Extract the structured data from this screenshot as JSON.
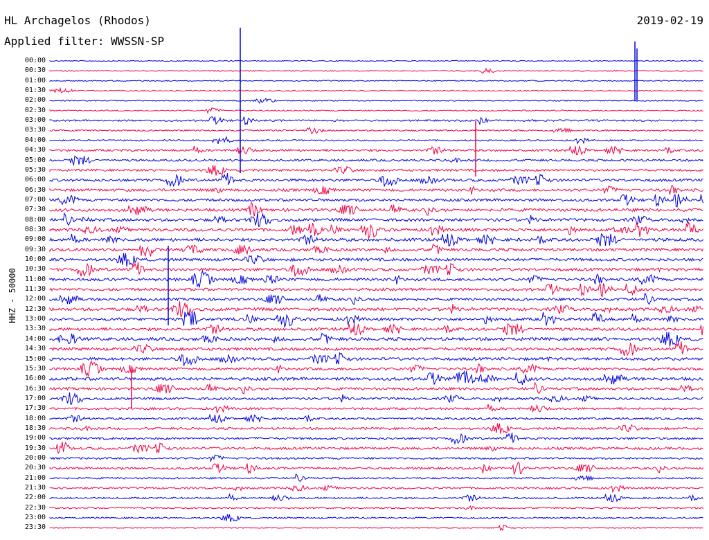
{
  "header": {
    "station": "HL Archagelos (Rhodos)",
    "filter": "Applied filter: WWSSN-SP",
    "date": "2019-02-19"
  },
  "axis": {
    "channel_label": "HHZ - 50000"
  },
  "colors": {
    "trace_a": "#0000dd",
    "trace_b": "#ee0044"
  },
  "traces": [
    {
      "time": "00:00",
      "color": "blue",
      "activity": 0.05
    },
    {
      "time": "00:30",
      "color": "red",
      "activity": 0.1
    },
    {
      "time": "01:00",
      "color": "blue",
      "activity": 0.1
    },
    {
      "time": "01:30",
      "color": "red",
      "activity": 0.1
    },
    {
      "time": "02:00",
      "color": "blue",
      "activity": 0.1
    },
    {
      "time": "02:30",
      "color": "red",
      "activity": 0.15
    },
    {
      "time": "03:00",
      "color": "blue",
      "activity": 0.4
    },
    {
      "time": "03:30",
      "color": "red",
      "activity": 0.3
    },
    {
      "time": "04:00",
      "color": "blue",
      "activity": 0.3
    },
    {
      "time": "04:30",
      "color": "red",
      "activity": 0.6
    },
    {
      "time": "05:00",
      "color": "blue",
      "activity": 0.6
    },
    {
      "time": "05:30",
      "color": "red",
      "activity": 0.6
    },
    {
      "time": "06:00",
      "color": "blue",
      "activity": 0.8
    },
    {
      "time": "06:30",
      "color": "red",
      "activity": 0.8
    },
    {
      "time": "07:00",
      "color": "blue",
      "activity": 0.8
    },
    {
      "time": "07:30",
      "color": "red",
      "activity": 0.9
    },
    {
      "time": "08:00",
      "color": "blue",
      "activity": 0.9
    },
    {
      "time": "08:30",
      "color": "red",
      "activity": 1.0
    },
    {
      "time": "09:00",
      "color": "blue",
      "activity": 1.0
    },
    {
      "time": "09:30",
      "color": "red",
      "activity": 0.9
    },
    {
      "time": "10:00",
      "color": "blue",
      "activity": 0.9
    },
    {
      "time": "10:30",
      "color": "red",
      "activity": 0.9
    },
    {
      "time": "11:00",
      "color": "blue",
      "activity": 0.9
    },
    {
      "time": "11:30",
      "color": "red",
      "activity": 0.8
    },
    {
      "time": "12:00",
      "color": "blue",
      "activity": 0.8
    },
    {
      "time": "12:30",
      "color": "red",
      "activity": 1.0
    },
    {
      "time": "13:00",
      "color": "blue",
      "activity": 0.9
    },
    {
      "time": "13:30",
      "color": "red",
      "activity": 0.9
    },
    {
      "time": "14:00",
      "color": "blue",
      "activity": 1.0
    },
    {
      "time": "14:30",
      "color": "red",
      "activity": 0.9
    },
    {
      "time": "15:00",
      "color": "blue",
      "activity": 0.9
    },
    {
      "time": "15:30",
      "color": "red",
      "activity": 0.8
    },
    {
      "time": "16:00",
      "color": "blue",
      "activity": 1.0
    },
    {
      "time": "16:30",
      "color": "red",
      "activity": 0.8
    },
    {
      "time": "17:00",
      "color": "blue",
      "activity": 0.7
    },
    {
      "time": "17:30",
      "color": "red",
      "activity": 0.6
    },
    {
      "time": "18:00",
      "color": "blue",
      "activity": 0.5
    },
    {
      "time": "18:30",
      "color": "red",
      "activity": 0.6
    },
    {
      "time": "19:00",
      "color": "blue",
      "activity": 0.6
    },
    {
      "time": "19:30",
      "color": "red",
      "activity": 0.7
    },
    {
      "time": "20:00",
      "color": "blue",
      "activity": 0.5
    },
    {
      "time": "20:30",
      "color": "red",
      "activity": 0.6
    },
    {
      "time": "21:00",
      "color": "blue",
      "activity": 0.4
    },
    {
      "time": "21:30",
      "color": "red",
      "activity": 0.5
    },
    {
      "time": "22:00",
      "color": "blue",
      "activity": 0.4
    },
    {
      "time": "22:30",
      "color": "red",
      "activity": 0.3
    },
    {
      "time": "23:00",
      "color": "blue",
      "activity": 0.3
    },
    {
      "time": "23:30",
      "color": "red",
      "activity": 0.1
    }
  ]
}
